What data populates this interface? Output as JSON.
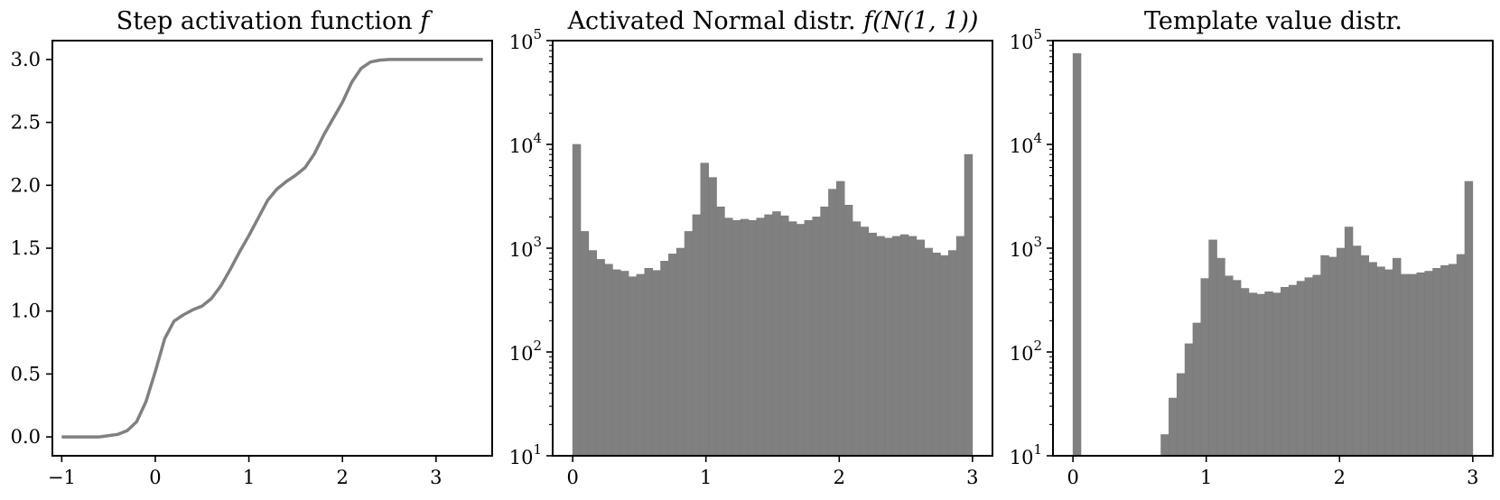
{
  "chart_data": [
    {
      "type": "line",
      "title": "Step activation function f",
      "title_parts": {
        "text": "Step activation function ",
        "math": "f"
      },
      "xlabel": "",
      "ylabel": "",
      "xlim": [
        -1.1,
        3.6
      ],
      "ylim": [
        -0.15,
        3.15
      ],
      "xticks": [
        -1,
        0,
        1,
        2,
        3
      ],
      "xtick_labels": [
        "−1",
        "0",
        "1",
        "2",
        "3"
      ],
      "yticks": [
        0.0,
        0.5,
        1.0,
        1.5,
        2.0,
        2.5,
        3.0
      ],
      "ytick_labels": [
        "0.0",
        "0.5",
        "1.0",
        "1.5",
        "2.0",
        "2.5",
        "3.0"
      ],
      "grid": false,
      "color": "#808080",
      "x": [
        -1.0,
        -0.6,
        -0.4,
        -0.3,
        -0.2,
        -0.1,
        0.0,
        0.1,
        0.2,
        0.3,
        0.4,
        0.5,
        0.6,
        0.7,
        0.8,
        0.9,
        1.0,
        1.1,
        1.2,
        1.3,
        1.4,
        1.5,
        1.6,
        1.7,
        1.8,
        1.9,
        2.0,
        2.1,
        2.2,
        2.3,
        2.4,
        2.5,
        2.7,
        3.0,
        3.5
      ],
      "y": [
        0.0,
        0.0,
        0.02,
        0.05,
        0.12,
        0.28,
        0.52,
        0.78,
        0.92,
        0.97,
        1.01,
        1.04,
        1.1,
        1.2,
        1.33,
        1.47,
        1.6,
        1.74,
        1.88,
        1.97,
        2.03,
        2.08,
        2.14,
        2.25,
        2.4,
        2.53,
        2.66,
        2.82,
        2.93,
        2.98,
        2.995,
        3.0,
        3.0,
        3.0,
        3.0
      ]
    },
    {
      "type": "bar",
      "title": "Activated Normal distr. f(N(1,1))",
      "title_parts": {
        "text": "Activated Normal distr. ",
        "math": "f(N(1, 1))"
      },
      "xlabel": "",
      "ylabel": "",
      "yscale": "log",
      "xlim": [
        -0.15,
        3.15
      ],
      "ylim": [
        10,
        100000
      ],
      "xticks": [
        0,
        1,
        2,
        3
      ],
      "xtick_labels": [
        "0",
        "1",
        "2",
        "3"
      ],
      "yticks": [
        10,
        100,
        1000,
        10000,
        100000
      ],
      "ytick_labels": [
        {
          "base": "10",
          "exp": "1"
        },
        {
          "base": "10",
          "exp": "2"
        },
        {
          "base": "10",
          "exp": "3"
        },
        {
          "base": "10",
          "exp": "4"
        },
        {
          "base": "10",
          "exp": "5"
        }
      ],
      "grid": false,
      "color": "#808080",
      "bin_range": [
        0,
        3
      ],
      "values": [
        10000,
        1450,
        950,
        780,
        700,
        620,
        600,
        530,
        560,
        640,
        610,
        750,
        880,
        1000,
        1450,
        2100,
        6600,
        4800,
        2500,
        1950,
        1850,
        1900,
        1850,
        1950,
        2100,
        2250,
        2050,
        1800,
        1700,
        1850,
        2000,
        2500,
        3700,
        4400,
        2600,
        1800,
        1600,
        1400,
        1300,
        1250,
        1300,
        1350,
        1300,
        1200,
        1000,
        900,
        850,
        950,
        1300,
        8000
      ]
    },
    {
      "type": "bar",
      "title": "Template value distr.",
      "xlabel": "",
      "ylabel": "",
      "yscale": "log",
      "xlim": [
        -0.15,
        3.15
      ],
      "ylim": [
        10,
        100000
      ],
      "xticks": [
        0,
        1,
        2,
        3
      ],
      "xtick_labels": [
        "0",
        "1",
        "2",
        "3"
      ],
      "yticks": [
        10,
        100,
        1000,
        10000,
        100000
      ],
      "ytick_labels": [
        {
          "base": "10",
          "exp": "1"
        },
        {
          "base": "10",
          "exp": "2"
        },
        {
          "base": "10",
          "exp": "3"
        },
        {
          "base": "10",
          "exp": "4"
        },
        {
          "base": "10",
          "exp": "5"
        }
      ],
      "grid": false,
      "color": "#808080",
      "bin_range": [
        0,
        3
      ],
      "values": [
        75000,
        0,
        0,
        0,
        0,
        0,
        0,
        0,
        0,
        0,
        0,
        16,
        36,
        62,
        120,
        190,
        510,
        1200,
        800,
        540,
        490,
        410,
        370,
        360,
        380,
        370,
        420,
        440,
        480,
        520,
        550,
        850,
        820,
        1000,
        1600,
        1050,
        850,
        730,
        660,
        620,
        800,
        560,
        560,
        580,
        600,
        640,
        680,
        700,
        870,
        4400
      ]
    }
  ]
}
